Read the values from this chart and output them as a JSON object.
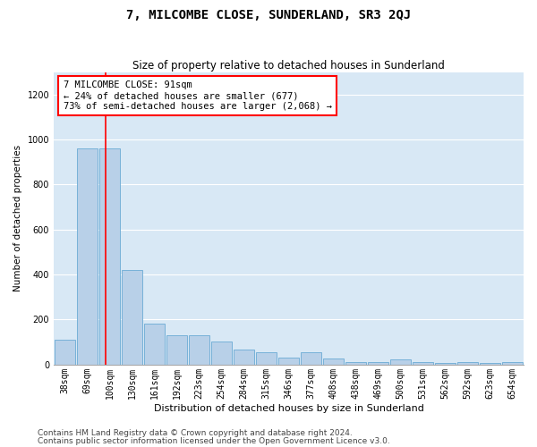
{
  "title": "7, MILCOMBE CLOSE, SUNDERLAND, SR3 2QJ",
  "subtitle": "Size of property relative to detached houses in Sunderland",
  "xlabel": "Distribution of detached houses by size in Sunderland",
  "ylabel": "Number of detached properties",
  "footer_line1": "Contains HM Land Registry data © Crown copyright and database right 2024.",
  "footer_line2": "Contains public sector information licensed under the Open Government Licence v3.0.",
  "categories": [
    "38sqm",
    "69sqm",
    "100sqm",
    "130sqm",
    "161sqm",
    "192sqm",
    "223sqm",
    "254sqm",
    "284sqm",
    "315sqm",
    "346sqm",
    "377sqm",
    "408sqm",
    "438sqm",
    "469sqm",
    "500sqm",
    "531sqm",
    "562sqm",
    "592sqm",
    "623sqm",
    "654sqm"
  ],
  "bar_values": [
    110,
    960,
    960,
    420,
    180,
    130,
    130,
    100,
    65,
    55,
    30,
    55,
    25,
    10,
    10,
    20,
    10,
    5,
    10,
    5,
    10
  ],
  "bar_color": "#b8d0e8",
  "bar_edgecolor": "#6aaad4",
  "plot_bg_color": "#d8e8f5",
  "ylim": [
    0,
    1300
  ],
  "yticks": [
    0,
    200,
    400,
    600,
    800,
    1000,
    1200
  ],
  "red_line_x": 1.82,
  "annotation_text": "7 MILCOMBE CLOSE: 91sqm\n← 24% of detached houses are smaller (677)\n73% of semi-detached houses are larger (2,068) →",
  "annotation_box_color": "white",
  "annotation_box_edgecolor": "red",
  "grid_color": "#ffffff",
  "title_fontsize": 10,
  "subtitle_fontsize": 8.5,
  "ylabel_fontsize": 7.5,
  "xlabel_fontsize": 8,
  "tick_fontsize": 7,
  "footer_fontsize": 6.5,
  "annotation_fontsize": 7.5
}
